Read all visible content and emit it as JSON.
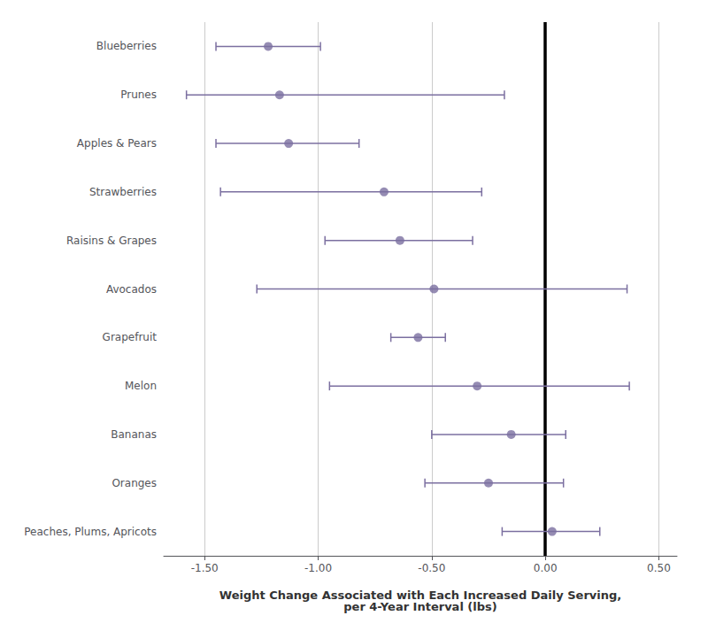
{
  "chart_data": {
    "type": "errorbar",
    "orientation": "horizontal",
    "categories": [
      "Blueberries",
      "Prunes",
      "Apples & Pears",
      "Strawberries",
      "Raisins & Grapes",
      "Avocados",
      "Grapefruit",
      "Melon",
      "Bananas",
      "Oranges",
      "Peaches, Plums, Apricots"
    ],
    "values": [
      -1.22,
      -1.17,
      -1.13,
      -0.71,
      -0.64,
      -0.49,
      -0.56,
      -0.3,
      -0.15,
      -0.25,
      0.03
    ],
    "ci_low": [
      -1.45,
      -1.58,
      -1.45,
      -1.43,
      -0.97,
      -1.27,
      -0.68,
      -0.95,
      -0.5,
      -0.53,
      -0.19
    ],
    "ci_high": [
      -0.99,
      -0.18,
      -0.82,
      -0.28,
      -0.32,
      0.36,
      -0.44,
      0.37,
      0.09,
      0.08,
      0.24
    ],
    "color": "#7B6FA0",
    "marker": "circle",
    "xlabel": "Weight Change Associated with Each Increased Daily Serving,\nper 4-Year Interval (lbs)",
    "xlim": [
      -1.68,
      0.58
    ],
    "xticks": [
      {
        "value": -1.5,
        "label": "-1.50"
      },
      {
        "value": -1.0,
        "label": "-1.00"
      },
      {
        "value": -0.5,
        "label": "-0.50"
      },
      {
        "value": 0.0,
        "label": "0.00"
      },
      {
        "value": 0.5,
        "label": "0.50"
      }
    ],
    "zero_line": 0.0,
    "grid": true
  }
}
